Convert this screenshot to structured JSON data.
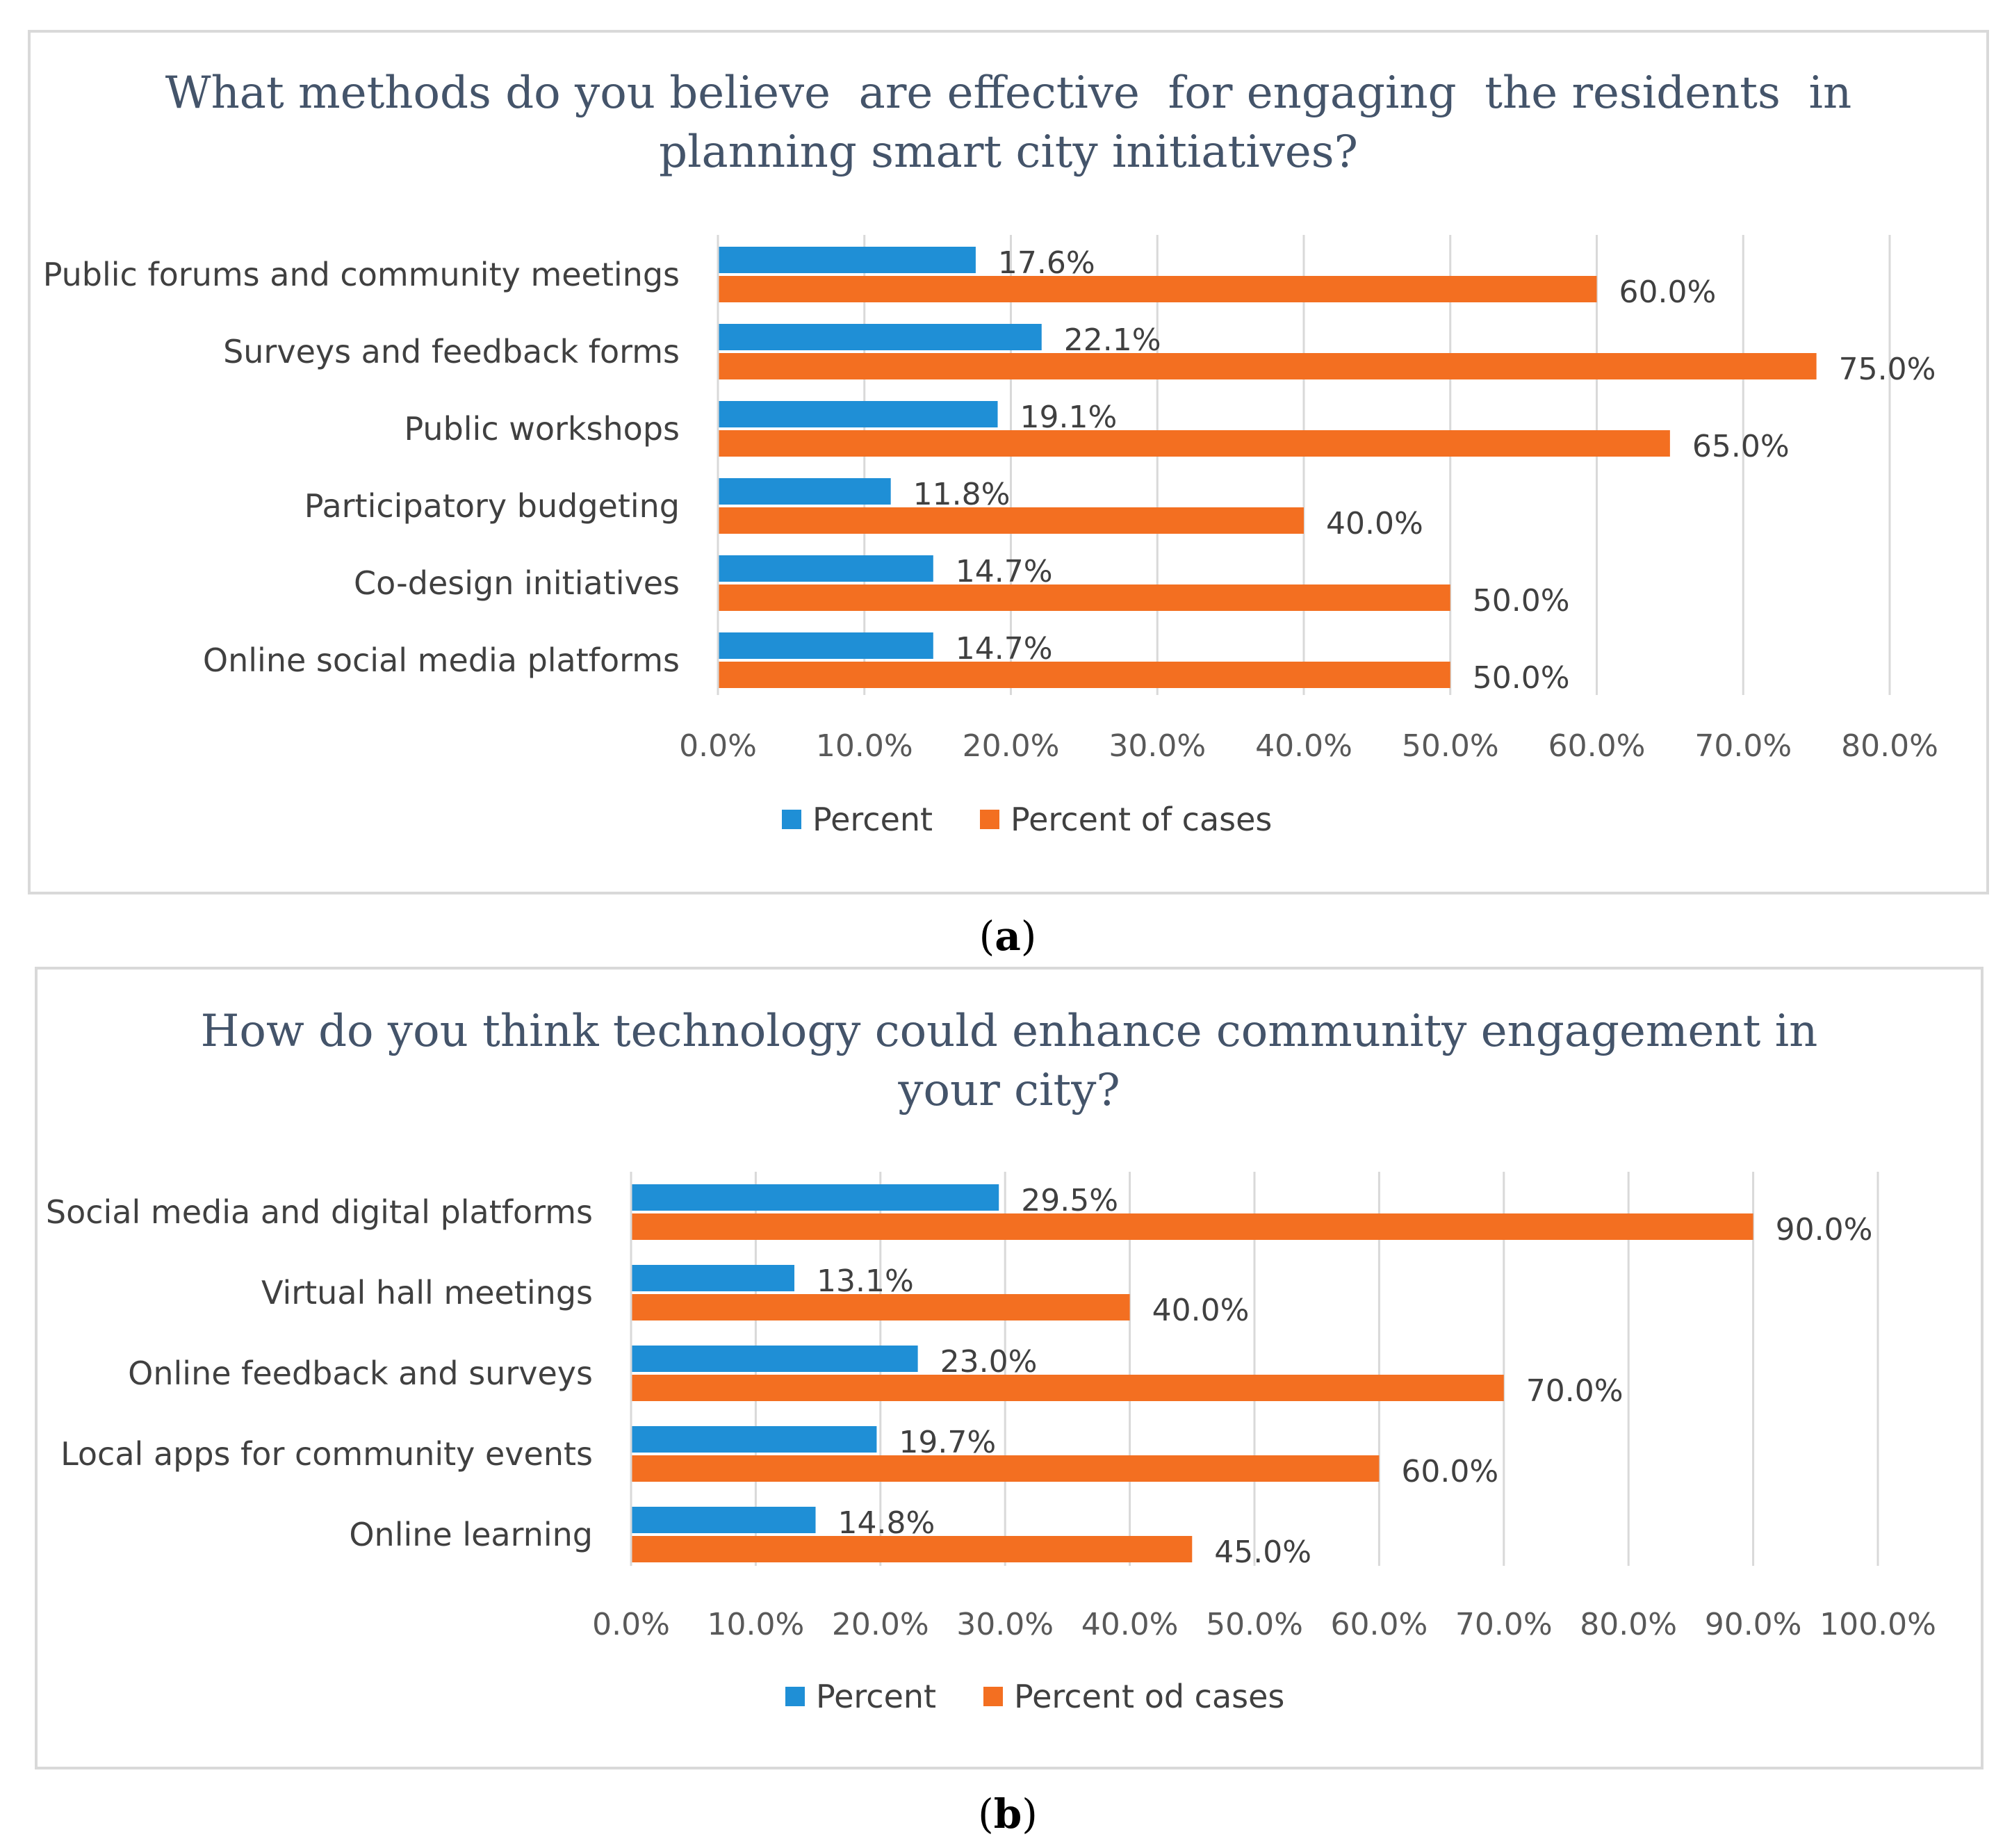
{
  "colors": {
    "percent": "#1f8fd6",
    "cases": "#f36f21"
  },
  "chart_data": [
    {
      "type": "bar",
      "orientation": "horizontal",
      "title_lines": [
        "What methods do you believe  are effective  for engaging  the residents  in",
        "planning smart city initiatives?"
      ],
      "categories": [
        "Public forums and community meetings",
        "Surveys and feedback forms",
        "Public workshops",
        "Participatory budgeting",
        "Co-design initiatives",
        "Online social media platforms"
      ],
      "series": [
        {
          "name": "Percent",
          "color": "#1f8fd6",
          "values": [
            17.6,
            22.1,
            19.1,
            11.8,
            14.7,
            14.7
          ],
          "labels": [
            "17.6%",
            "22.1%",
            "19.1%",
            "11.8%",
            "14.7%",
            "14.7%"
          ]
        },
        {
          "name": "Percent of cases",
          "color": "#f36f21",
          "values": [
            60.0,
            75.0,
            65.0,
            40.0,
            50.0,
            50.0
          ],
          "labels": [
            "60.0%",
            "75.0%",
            "65.0%",
            "40.0%",
            "50.0%",
            "50.0%"
          ]
        }
      ],
      "xlim": [
        0,
        80
      ],
      "xticks": [
        "0.0%",
        "10.0%",
        "20.0%",
        "30.0%",
        "40.0%",
        "50.0%",
        "60.0%",
        "70.0%",
        "80.0%"
      ],
      "legend_position": "bottom",
      "grid": true,
      "caption": {
        "open": "(",
        "letter": "a",
        "close": ")"
      }
    },
    {
      "type": "bar",
      "orientation": "horizontal",
      "title_lines": [
        "How do you think technology could enhance community engagement in",
        "your city?"
      ],
      "categories": [
        "Social media and digital platforms",
        "Virtual hall meetings",
        "Online feedback and surveys",
        "Local apps for community events",
        "Online learning"
      ],
      "series": [
        {
          "name": "Percent",
          "color": "#1f8fd6",
          "values": [
            29.5,
            13.1,
            23.0,
            19.7,
            14.8
          ],
          "labels": [
            "29.5%",
            "13.1%",
            "23.0%",
            "19.7%",
            "14.8%"
          ]
        },
        {
          "name": "Percent od cases",
          "color": "#f36f21",
          "values": [
            90.0,
            40.0,
            70.0,
            60.0,
            45.0
          ],
          "labels": [
            "90.0%",
            "40.0%",
            "70.0%",
            "60.0%",
            "45.0%"
          ]
        }
      ],
      "xlim": [
        0,
        100
      ],
      "xticks": [
        "0.0%",
        "10.0%",
        "20.0%",
        "30.0%",
        "40.0%",
        "50.0%",
        "60.0%",
        "70.0%",
        "80.0%",
        "90.0%",
        "100.0%"
      ],
      "legend_position": "bottom",
      "grid": true,
      "caption": {
        "open": "(",
        "letter": "b",
        "close": ")"
      }
    }
  ]
}
